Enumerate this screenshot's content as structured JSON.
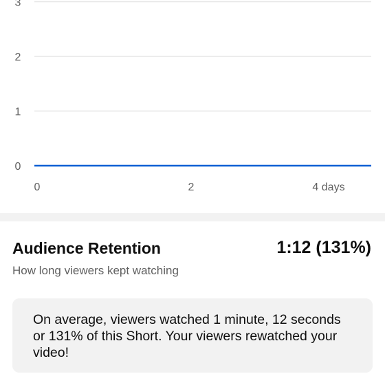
{
  "chart_data": {
    "type": "line",
    "x": [
      0,
      4
    ],
    "series": [
      {
        "values": [
          0,
          0
        ]
      }
    ],
    "x_ticks": [
      "0",
      "2",
      "4 days"
    ],
    "y_ticks": [
      "0",
      "1",
      "2",
      "3"
    ],
    "xlim": [
      0,
      4.4
    ],
    "ylim": [
      0,
      3
    ],
    "grid": true,
    "line_color": "#065fd4",
    "grid_color": "#e5e5e5"
  },
  "retention": {
    "title": "Audience Retention",
    "value": "1:12 (131%)",
    "subtitle": "How long viewers kept watching",
    "summary": "On average, viewers watched 1 minute, 12 seconds or 131% of this Short. Your viewers rewatched your video!"
  }
}
